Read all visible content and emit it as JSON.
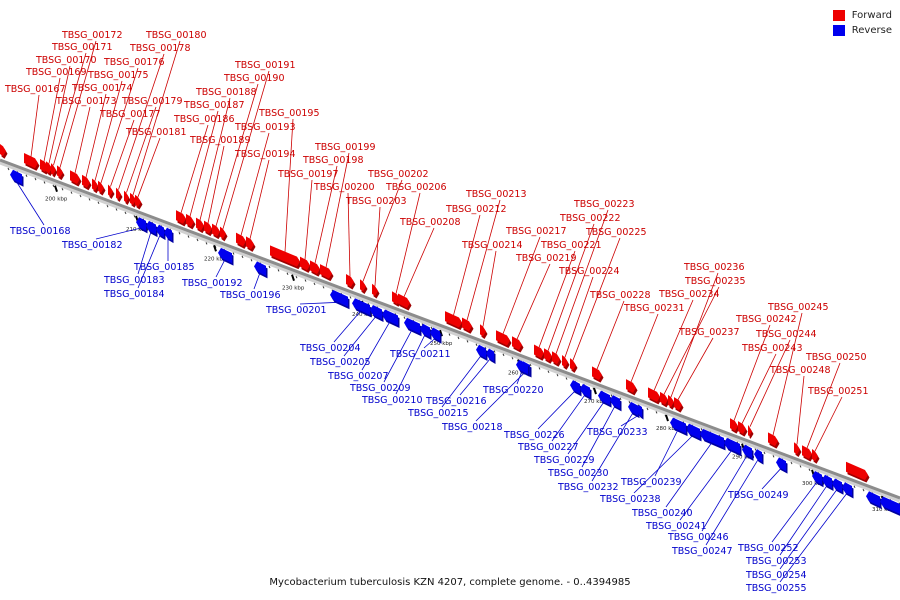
{
  "legend": {
    "forward": {
      "label": "Forward",
      "color": "#ee0000"
    },
    "reverse": {
      "label": "Reverse",
      "color": "#0000ee"
    }
  },
  "caption": "Mycobacterium tuberculosis KZN 4207, complete genome. - 0..4394985",
  "axis": {
    "color": "#8c8c8c",
    "ticks": [
      {
        "label": "200 kbp",
        "kb": 200
      },
      {
        "label": "210 kbp",
        "kb": 210
      },
      {
        "label": "220 kbp",
        "kb": 220
      },
      {
        "label": "230 kbp",
        "kb": 230
      },
      {
        "label": "240 kbp",
        "kb": 240
      },
      {
        "label": "250 kbp",
        "kb": 250
      },
      {
        "label": "260 kbp",
        "kb": 260
      },
      {
        "label": "270 kbp",
        "kb": 270
      },
      {
        "label": "280 kbp",
        "kb": 280
      },
      {
        "label": "290 kbp",
        "kb": 290
      },
      {
        "label": "300 kbp",
        "kb": 300
      },
      {
        "label": "310 kbp",
        "kb": 310
      }
    ]
  },
  "forward_genes": [
    "TBSG_00167",
    "TBSG_00169",
    "TBSG_00170",
    "TBSG_00171",
    "TBSG_00172",
    "TBSG_00173",
    "TBSG_00174",
    "TBSG_00175",
    "TBSG_00176",
    "TBSG_00177",
    "TBSG_00178",
    "TBSG_00179",
    "TBSG_00180",
    "TBSG_00181",
    "TBSG_00186",
    "TBSG_00187",
    "TBSG_00188",
    "TBSG_00189",
    "TBSG_00190",
    "TBSG_00191",
    "TBSG_00193",
    "TBSG_00194",
    "TBSG_00195",
    "TBSG_00197",
    "TBSG_00198",
    "TBSG_00199",
    "TBSG_00200",
    "TBSG_00202",
    "TBSG_00203",
    "TBSG_00206",
    "TBSG_00208",
    "TBSG_00212",
    "TBSG_00213",
    "TBSG_00214",
    "TBSG_00217",
    "TBSG_00219",
    "TBSG_00221",
    "TBSG_00222",
    "TBSG_00223",
    "TBSG_00224",
    "TBSG_00225",
    "TBSG_00228",
    "TBSG_00231",
    "TBSG_00234",
    "TBSG_00235",
    "TBSG_00236",
    "TBSG_00237",
    "TBSG_00242",
    "TBSG_00243",
    "TBSG_00244",
    "TBSG_00245",
    "TBSG_00248",
    "TBSG_00250",
    "TBSG_00251"
  ],
  "reverse_genes": [
    "TBSG_00168",
    "TBSG_00182",
    "TBSG_00183",
    "TBSG_00184",
    "TBSG_00185",
    "TBSG_00192",
    "TBSG_00196",
    "TBSG_00201",
    "TBSG_00204",
    "TBSG_00205",
    "TBSG_00207",
    "TBSG_00209",
    "TBSG_00210",
    "TBSG_00211",
    "TBSG_00215",
    "TBSG_00216",
    "TBSG_00218",
    "TBSG_00220",
    "TBSG_00226",
    "TBSG_00227",
    "TBSG_00229",
    "TBSG_00230",
    "TBSG_00232",
    "TBSG_00233",
    "TBSG_00238",
    "TBSG_00239",
    "TBSG_00240",
    "TBSG_00241",
    "TBSG_00246",
    "TBSG_00247",
    "TBSG_00249",
    "TBSG_00252",
    "TBSG_00253",
    "TBSG_00254",
    "TBSG_00255"
  ]
}
